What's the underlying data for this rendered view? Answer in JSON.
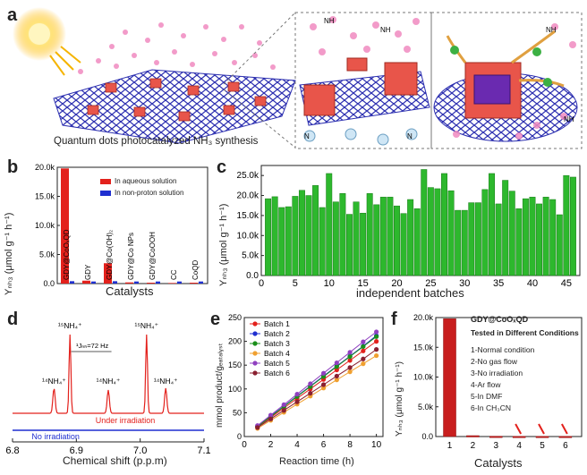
{
  "panel_a": {
    "label": "a",
    "caption": "Quantum dots photocatalyzed NH₃ synthesis",
    "molecule_label": "NH",
    "n2_label": "N",
    "electron_label": "e"
  },
  "panel_b": {
    "label": "b",
    "ylabel": "Yₙₕ₃ (μmol g⁻¹ h⁻¹)",
    "xlabel": "Catalysts",
    "legend": [
      "In aqueous solution",
      "In non-proton solution"
    ],
    "colors": {
      "aqueous": "#e3211c",
      "nonproton": "#1f2fd0"
    }
  },
  "panel_c": {
    "label": "c",
    "ylabel": "Yₙₕ₃ (μmol g⁻¹ h⁻¹)",
    "xlabel": "independent batches",
    "color": "#2db82d"
  },
  "panel_d": {
    "label": "d",
    "xlabel": "Chemical shift (p.p.m)",
    "peaks": [
      "¹⁴NH₄⁺",
      "¹⁵NH₄⁺",
      "¹⁴NH₄⁺",
      "¹⁵NH₄⁺",
      "¹⁴NH₄⁺"
    ],
    "coupling": "¹Jₙₕ=72 Hz",
    "trace_labels": [
      "Under irradiation",
      "No irradiation"
    ]
  },
  "panel_e": {
    "label": "e",
    "ylabel": "mmol product/gₑₐₜₐₗᵧₛₜ",
    "xlabel": "Reaction time (h)"
  },
  "panel_f": {
    "label": "f",
    "ylabel": "Yₙₕ₃ (μmol g⁻¹ h⁻¹)",
    "xlabel": "Catalysts",
    "title1": "GDY@CoOₓQD",
    "title2": "Tested in Different Conditions",
    "conditions": [
      "1-Normal condition",
      "2-No gas flow",
      "3-No irradiation",
      "4-Ar flow",
      "5-In DMF",
      "6-In CH₃CN"
    ]
  },
  "chart_data": [
    {
      "type": "bar",
      "panel": "b",
      "categories": [
        "GDY@CoOₓQD",
        "GDY",
        "GDY@Co(OH)₂",
        "GDY@Co NPs",
        "GDY@CoOOH",
        "CC",
        "CoQD"
      ],
      "series": [
        {
          "name": "In aqueous solution",
          "values": [
            19800,
            500,
            3500,
            200,
            150,
            100,
            150
          ]
        },
        {
          "name": "In non-proton solution",
          "values": [
            100,
            50,
            100,
            50,
            50,
            50,
            50
          ]
        }
      ],
      "ylim": [
        0,
        20000
      ],
      "yticks": [
        "0.0",
        "5.0k",
        "10.0k",
        "15.0k",
        "20.0k"
      ],
      "xlabel": "Catalysts",
      "ylabel": "Y_NH3 (μmol g_cat⁻¹ h⁻¹)"
    },
    {
      "type": "bar",
      "panel": "c",
      "x": [
        1,
        2,
        3,
        4,
        5,
        6,
        7,
        8,
        9,
        10,
        11,
        12,
        13,
        14,
        15,
        16,
        17,
        18,
        19,
        20,
        21,
        22,
        23,
        24,
        25,
        26,
        27,
        28,
        29,
        30,
        31,
        32,
        33,
        34,
        35,
        36,
        37,
        38,
        39,
        40,
        41,
        42,
        43,
        44,
        45,
        46
      ],
      "values": [
        19200,
        19700,
        17000,
        17200,
        19800,
        21300,
        20000,
        22500,
        17000,
        25500,
        18400,
        20500,
        15300,
        18400,
        15600,
        20500,
        17700,
        19600,
        19600,
        17400,
        15500,
        19000,
        16700,
        26500,
        22000,
        21700,
        25500,
        21200,
        16300,
        16300,
        18200,
        18200,
        21500,
        25500,
        17900,
        23800,
        21100,
        16700,
        19200,
        19600,
        17900,
        19600,
        19000,
        15200,
        25000,
        24600
      ],
      "ylim": [
        0,
        27500
      ],
      "yticks": [
        "0.0",
        "5.0k",
        "10.0k",
        "15.0k",
        "20.0k",
        "25.0k"
      ],
      "xticks": [
        0,
        5,
        10,
        15,
        20,
        25,
        30,
        35,
        40,
        45
      ],
      "xlabel": "independent batches",
      "ylabel": "Y_NH3 (μmol g_cat⁻¹ h⁻¹)"
    },
    {
      "type": "line",
      "panel": "d",
      "xlim": [
        6.8,
        7.1
      ],
      "xticks": [
        "6.8",
        "6.9",
        "7.0",
        "7.1"
      ],
      "peak_positions": [
        6.865,
        6.89,
        6.95,
        7.01,
        7.04
      ],
      "series": [
        {
          "name": "Under irradiation",
          "color": "#e3211c"
        },
        {
          "name": "No irradiation",
          "color": "#1f2fd0"
        }
      ],
      "xlabel": "Chemical shift (p.p.m)"
    },
    {
      "type": "line",
      "panel": "e",
      "x": [
        1,
        2,
        3,
        4,
        5,
        6,
        7,
        8,
        9,
        10
      ],
      "series": [
        {
          "name": "Batch 1",
          "color": "#e3211c",
          "values": [
            20,
            40,
            60,
            80,
            100,
            120,
            140,
            160,
            180,
            200
          ]
        },
        {
          "name": "Batch 2",
          "color": "#1f2fd0",
          "values": [
            22,
            43,
            64,
            85,
            106,
            127,
            148,
            169,
            190,
            212
          ]
        },
        {
          "name": "Batch 3",
          "color": "#1a8f1a",
          "values": [
            21,
            42,
            63,
            84,
            105,
            126,
            147,
            168,
            189,
            210
          ]
        },
        {
          "name": "Batch 4",
          "color": "#f0a030",
          "values": [
            17,
            34,
            51,
            68,
            85,
            102,
            119,
            136,
            153,
            170
          ]
        },
        {
          "name": "Batch 5",
          "color": "#9040c0",
          "values": [
            23,
            45,
            67,
            89,
            111,
            133,
            155,
            177,
            199,
            220
          ]
        },
        {
          "name": "Batch 6",
          "color": "#8a2030",
          "values": [
            19,
            37,
            55,
            73,
            91,
            109,
            127,
            145,
            163,
            183
          ]
        }
      ],
      "xlim": [
        0,
        10.5
      ],
      "ylim": [
        0,
        250
      ],
      "xticks": [
        "0",
        "2",
        "4",
        "6",
        "8",
        "10"
      ],
      "yticks": [
        "0",
        "50",
        "100",
        "150",
        "200",
        "250"
      ],
      "xlabel": "Reaction time (h)",
      "ylabel": "mmol product/g_catalyst"
    },
    {
      "type": "bar",
      "panel": "f",
      "categories": [
        "1",
        "2",
        "3",
        "4",
        "5",
        "6"
      ],
      "values": [
        19800,
        150,
        50,
        30,
        30,
        30
      ],
      "ylim": [
        0,
        20000
      ],
      "yticks": [
        "0.0",
        "5.0k",
        "10.0k",
        "15.0k",
        "20.0k"
      ],
      "xlabel": "Catalysts",
      "ylabel": "Y_NH3 (μmol g_cat⁻¹ h⁻¹)"
    }
  ]
}
